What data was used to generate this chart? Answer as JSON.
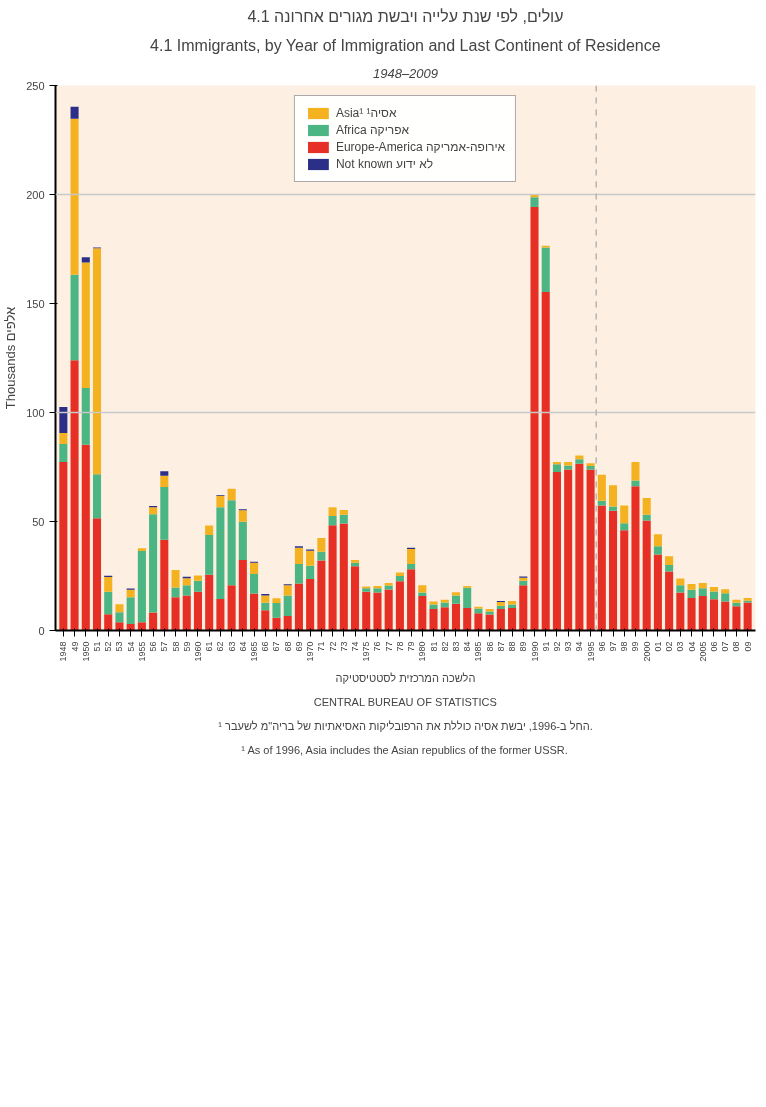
{
  "chart_data": {
    "type": "bar",
    "stacked": true,
    "title": "4.1 עולים, לפי שנת עלייה ויבשת מגורים אחרונה",
    "subtitle": "4.1 Immigrants, by Year of Immigration and Last Continent of Residence",
    "ylabel": "Thousands אלפים",
    "x": [
      1948,
      1949,
      1950,
      1951,
      1952,
      1953,
      1954,
      1955,
      1956,
      1957,
      1958,
      1959,
      1960,
      1961,
      1962,
      1963,
      1964,
      1965,
      1966,
      1967,
      1968,
      1969,
      1970,
      1971,
      1972,
      1973,
      1974,
      1975,
      1976,
      1977,
      1978,
      1979,
      1980,
      1981,
      1982,
      1983,
      1984,
      1985,
      1986,
      1987,
      1988,
      1989,
      1990,
      1991,
      1992,
      1993,
      1994,
      1995,
      1996,
      1997,
      1998,
      1999,
      2000,
      2001,
      2002,
      2003,
      2004,
      2005,
      2006,
      2007,
      2008,
      2009
    ],
    "xlim": [
      1947.3,
      2009.7
    ],
    "xticks": [
      1948,
      {
        "value": 1949,
        "label": "49"
      },
      1950,
      {
        "value": 1951,
        "label": "51"
      },
      {
        "value": 1952,
        "label": "52"
      },
      {
        "value": 1953,
        "label": "53"
      },
      {
        "value": 1954,
        "label": "54"
      },
      1955,
      {
        "value": 1956,
        "label": "56"
      },
      {
        "value": 1957,
        "label": "57"
      },
      {
        "value": 1958,
        "label": "58"
      },
      {
        "value": 1959,
        "label": "59"
      },
      1960,
      {
        "value": 1961,
        "label": "61"
      },
      {
        "value": 1962,
        "label": "62"
      },
      {
        "value": 1963,
        "label": "63"
      },
      {
        "value": 1964,
        "label": "64"
      },
      1965,
      {
        "value": 1966,
        "label": "66"
      },
      {
        "value": 1967,
        "label": "67"
      },
      {
        "value": 1968,
        "label": "68"
      },
      {
        "value": 1969,
        "label": "69"
      },
      1970,
      {
        "value": 1971,
        "label": "71"
      },
      {
        "value": 1972,
        "label": "72"
      },
      {
        "value": 1973,
        "label": "73"
      },
      {
        "value": 1974,
        "label": "74"
      },
      1975,
      {
        "value": 1976,
        "label": "76"
      },
      {
        "value": 1977,
        "label": "77"
      },
      {
        "value": 1978,
        "label": "78"
      },
      {
        "value": 1979,
        "label": "79"
      },
      1980,
      {
        "value": 1981,
        "label": "81"
      },
      {
        "value": 1982,
        "label": "82"
      },
      {
        "value": 1983,
        "label": "83"
      },
      {
        "value": 1984,
        "label": "84"
      },
      1985,
      {
        "value": 1986,
        "label": "86"
      },
      {
        "value": 1987,
        "label": "87"
      },
      {
        "value": 1988,
        "label": "88"
      },
      {
        "value": 1989,
        "label": "89"
      },
      1990,
      {
        "value": 1991,
        "label": "91"
      },
      {
        "value": 1992,
        "label": "92"
      },
      {
        "value": 1993,
        "label": "93"
      },
      {
        "value": 1994,
        "label": "94"
      },
      1995,
      {
        "value": 1996,
        "label": "96"
      },
      {
        "value": 1997,
        "label": "97"
      },
      {
        "value": 1998,
        "label": "98"
      },
      {
        "value": 1999,
        "label": "99"
      },
      2000,
      {
        "value": 2001,
        "label": "01"
      },
      {
        "value": 2002,
        "label": "02"
      },
      {
        "value": 2003,
        "label": "03"
      },
      {
        "value": 2004,
        "label": "04"
      },
      2005,
      {
        "value": 2006,
        "label": "06"
      },
      {
        "value": 2007,
        "label": "07"
      },
      {
        "value": 2008,
        "label": "08"
      },
      {
        "value": 2009,
        "label": "09"
      }
    ],
    "ylim": [
      0,
      250
    ],
    "yticks": [
      0,
      50,
      100,
      150,
      200,
      250
    ],
    "grid": false,
    "legend": "top",
    "series": [
      {
        "name": "Europe-America אירופה-אמריקה",
        "color": "#e63025",
        "values": [
          77.3,
          124.0,
          85.2,
          51.5,
          7.5,
          3.8,
          3.0,
          3.8,
          8.3,
          41.6,
          15.3,
          16.0,
          17.8,
          25.6,
          14.5,
          20.8,
          32.3,
          17.0,
          9.3,
          5.9,
          6.7,
          21.6,
          23.6,
          32.1,
          48.3,
          49.1,
          29.5,
          17.8,
          17.4,
          18.8,
          22.6,
          28.1,
          15.8,
          9.9,
          10.7,
          12.3,
          10.3,
          7.9,
          7.3,
          9.9,
          10.3,
          20.8,
          194.3,
          155.3,
          72.7,
          73.9,
          76.5,
          73.9,
          57.3,
          54.9,
          46.0,
          66.2,
          50.5,
          34.9,
          27.1,
          17.4,
          14.9,
          15.8,
          14.3,
          13.3,
          11.1,
          12.9
        ]
      },
      {
        "name": "Africa אפריקה",
        "color": "#4bb583",
        "values": [
          8.3,
          39.2,
          26.0,
          20.2,
          10.3,
          4.6,
          12.3,
          32.7,
          45.0,
          24.2,
          4.4,
          4.8,
          5.0,
          18.2,
          42.0,
          39.0,
          17.6,
          8.9,
          3.4,
          6.7,
          9.3,
          8.9,
          6.1,
          4.0,
          4.2,
          4.0,
          1.6,
          1.6,
          2.0,
          1.8,
          2.4,
          2.4,
          1.6,
          2.0,
          2.2,
          3.8,
          9.3,
          2.2,
          1.4,
          1.4,
          1.6,
          2.0,
          4.4,
          20.4,
          3.6,
          1.8,
          2.0,
          1.6,
          2.2,
          2.0,
          3.2,
          2.6,
          2.6,
          3.8,
          3.0,
          3.4,
          3.8,
          3.6,
          3.6,
          3.8,
          1.6,
          0.8
        ]
      },
      {
        "name": "Asia¹ אסיה¹",
        "color": "#f4b120",
        "values": [
          5.0,
          71.5,
          57.6,
          103.6,
          6.7,
          3.6,
          3.4,
          1.2,
          3.2,
          5.2,
          8.1,
          3.2,
          2.4,
          4.4,
          5.3,
          5.2,
          5.3,
          5.2,
          3.4,
          2.2,
          4.8,
          7.5,
          6.9,
          6.3,
          4.0,
          2.2,
          1.2,
          0.8,
          1.0,
          1.2,
          1.6,
          6.9,
          3.4,
          1.4,
          1.2,
          1.4,
          0.8,
          0.8,
          1.2,
          1.8,
          1.6,
          1.4,
          1.4,
          0.8,
          1.0,
          1.6,
          1.8,
          1.2,
          11.9,
          9.7,
          8.1,
          8.5,
          7.7,
          5.5,
          4.0,
          3.0,
          2.6,
          2.4,
          2.0,
          1.8,
          1.4,
          1.2
        ]
      },
      {
        "name": "Not known לא ידוע",
        "color": "#2b2f87",
        "values": [
          11.9,
          5.5,
          2.4,
          0.4,
          0.6,
          0,
          0.6,
          0,
          0.6,
          2.0,
          0,
          0.6,
          0,
          0,
          0.4,
          0,
          0.4,
          0.4,
          0.6,
          0,
          0.4,
          0.6,
          0.6,
          0,
          0,
          0,
          0,
          0,
          0,
          0,
          0,
          0.6,
          0,
          0,
          0,
          0,
          0,
          0,
          0,
          0.4,
          0,
          0.6,
          0,
          0,
          0,
          0,
          0,
          0,
          0,
          0,
          0,
          0,
          0,
          0,
          0,
          0,
          0,
          0,
          0,
          0,
          0,
          0
        ]
      }
    ],
    "ref_lines": [
      {
        "axis": "y",
        "value": 100,
        "color": "#c8c8c8",
        "line_style": "solid"
      },
      {
        "axis": "y",
        "value": 200,
        "color": "#c8c8c8",
        "line_style": "solid"
      },
      {
        "axis": "x",
        "value": 1995.5,
        "color": "#b4b4b4",
        "line_style": "dashed"
      }
    ],
    "annotations": [
      "1948–2009",
      "¹ As of 1996, Asia includes the Asian republics of the former USSR.",
      "¹ החל ב-1996, יבשת אסיה כוללת את הרפובליקות האסיאתיות של בריה\"מ לשעבר.",
      "CENTRAL BUREAU OF STATISTICS",
      "הלשכה המרכזית לסטטיסטיקה"
    ]
  }
}
